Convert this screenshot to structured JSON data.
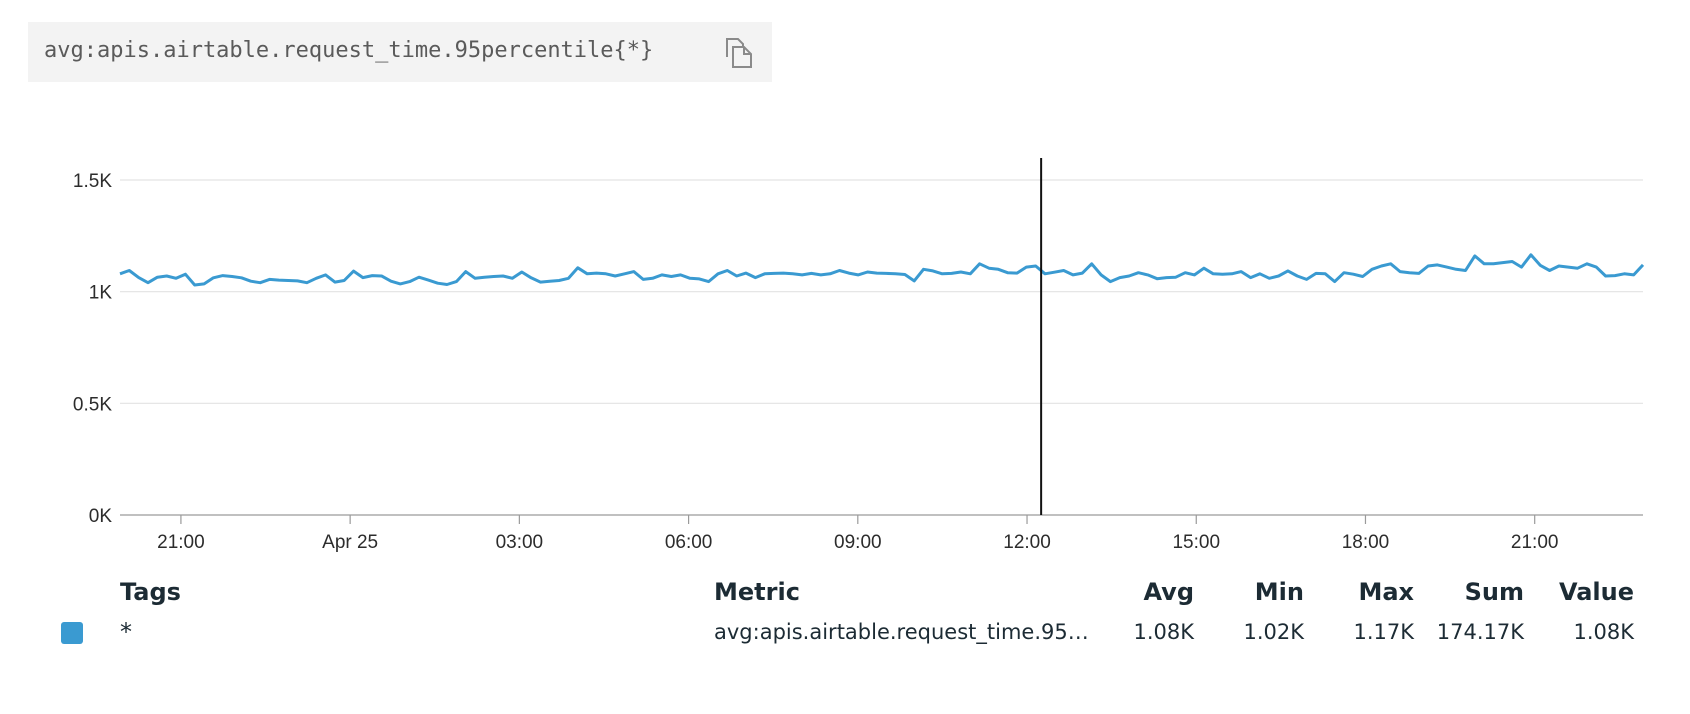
{
  "query": {
    "text": "avg:apis.airtable.request_time.95percentile{*}",
    "copy_icon": "copy-icon"
  },
  "chart_data": {
    "type": "line",
    "title": "",
    "xlabel": "",
    "ylabel": "",
    "ylim": [
      0,
      1600
    ],
    "yticks": [
      "0K",
      "0.5K",
      "1K",
      "1.5K"
    ],
    "ytick_values": [
      0,
      500,
      1000,
      1500
    ],
    "xticks": [
      "21:00",
      "Apr 25",
      "03:00",
      "06:00",
      "09:00",
      "12:00",
      "15:00",
      "18:00",
      "21:00"
    ],
    "xtick_hours": [
      0,
      3,
      6,
      9,
      12,
      15,
      18,
      21,
      24
    ],
    "x_range_hours": [
      -1.08,
      25.92
    ],
    "grid": true,
    "crosshair_hour": 15.25,
    "series": [
      {
        "color": "#3a9ad1",
        "values": [
          1080,
          1095,
          1063,
          1040,
          1065,
          1070,
          1060,
          1078,
          1030,
          1035,
          1062,
          1072,
          1068,
          1062,
          1047,
          1040,
          1055,
          1052,
          1050,
          1048,
          1040,
          1060,
          1075,
          1043,
          1050,
          1092,
          1063,
          1072,
          1070,
          1047,
          1035,
          1045,
          1065,
          1052,
          1038,
          1032,
          1045,
          1090,
          1060,
          1065,
          1068,
          1070,
          1060,
          1088,
          1062,
          1043,
          1047,
          1050,
          1060,
          1107,
          1080,
          1083,
          1080,
          1070,
          1080,
          1090,
          1055,
          1060,
          1075,
          1068,
          1075,
          1060,
          1057,
          1045,
          1080,
          1095,
          1070,
          1083,
          1063,
          1080,
          1082,
          1083,
          1080,
          1075,
          1082,
          1075,
          1080,
          1095,
          1083,
          1075,
          1088,
          1083,
          1082,
          1080,
          1077,
          1048,
          1100,
          1093,
          1080,
          1082,
          1088,
          1080,
          1125,
          1105,
          1100,
          1085,
          1083,
          1110,
          1115,
          1080,
          1087,
          1095,
          1075,
          1083,
          1125,
          1075,
          1045,
          1063,
          1070,
          1085,
          1075,
          1058,
          1063,
          1065,
          1085,
          1075,
          1105,
          1080,
          1078,
          1080,
          1090,
          1063,
          1080,
          1060,
          1070,
          1093,
          1070,
          1055,
          1082,
          1080,
          1045,
          1085,
          1078,
          1068,
          1100,
          1115,
          1125,
          1090,
          1085,
          1082,
          1115,
          1120,
          1110,
          1100,
          1095,
          1160,
          1125,
          1125,
          1130,
          1135,
          1110,
          1165,
          1118,
          1095,
          1115,
          1110,
          1105,
          1125,
          1110,
          1070,
          1072,
          1080,
          1075,
          1120
        ]
      }
    ]
  },
  "legend": {
    "headers": {
      "tags": "Tags",
      "metric": "Metric",
      "avg": "Avg",
      "min": "Min",
      "max": "Max",
      "sum": "Sum",
      "value": "Value"
    },
    "row": {
      "color": "#3a9ad1",
      "tags": "*",
      "metric": "avg:apis.airtable.request_time.95…",
      "avg": "1.08K",
      "min": "1.02K",
      "max": "1.17K",
      "sum": "174.17K",
      "value": "1.08K"
    }
  }
}
